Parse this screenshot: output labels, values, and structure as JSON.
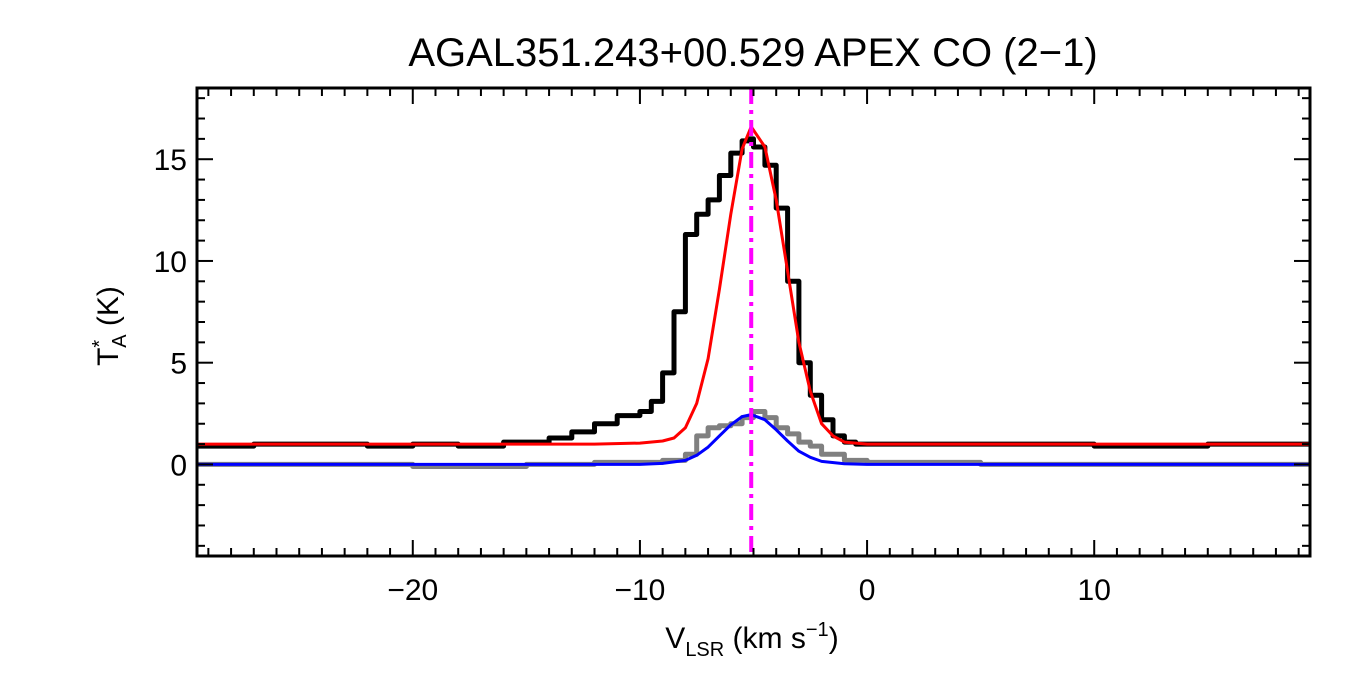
{
  "chart_data": {
    "type": "line",
    "title": "AGAL351.243+00.529  APEX CO (2−1)",
    "xlabel": {
      "main": "V",
      "sub": "LSR",
      "rest": " (km s",
      "sup": "−1",
      "close": ")"
    },
    "ylabel": {
      "main": "T",
      "sup": "*",
      "sub": "A",
      "rest": " (K)"
    },
    "xlim": [
      -29.5,
      19.5
    ],
    "ylim": [
      -4.5,
      18.5
    ],
    "xticks": [
      -20,
      -10,
      0,
      10
    ],
    "xtick_labels": [
      "−20",
      "−10",
      "0",
      "10"
    ],
    "yticks": [
      0,
      5,
      10,
      15
    ],
    "ytick_labels": [
      "0",
      "5",
      "10",
      "15"
    ],
    "grid": false,
    "legend": "none",
    "vline": {
      "x": -5.1,
      "color": "#ff00ff",
      "style": "dash-dot"
    },
    "series": [
      {
        "style": "step",
        "color": "#000000",
        "x": [
          -29.5,
          -27.0,
          -25.0,
          -22.0,
          -20.0,
          -18.0,
          -16.0,
          -14.0,
          -13.0,
          -12.0,
          -11.0,
          -10.0,
          -9.5,
          -9.0,
          -8.5,
          -8.0,
          -7.5,
          -7.0,
          -6.5,
          -6.0,
          -5.5,
          -5.2,
          -5.0,
          -4.5,
          -4.0,
          -3.5,
          -3.0,
          -2.5,
          -2.0,
          -1.5,
          -1.0,
          -0.5,
          0.0,
          5.0,
          10.0,
          15.0,
          19.5
        ],
        "y": [
          0.9,
          1.0,
          1.0,
          0.9,
          1.0,
          0.9,
          1.1,
          1.3,
          1.6,
          2.0,
          2.4,
          2.6,
          3.1,
          4.5,
          7.5,
          11.3,
          12.3,
          13.0,
          14.2,
          15.3,
          15.9,
          16.0,
          15.6,
          14.7,
          12.6,
          9.0,
          5.0,
          3.4,
          2.2,
          1.4,
          1.1,
          1.0,
          1.0,
          1.0,
          0.9,
          1.0,
          1.0
        ]
      },
      {
        "style": "step",
        "color": "#808080",
        "x": [
          -29.5,
          -25.0,
          -20.0,
          -15.0,
          -12.0,
          -10.0,
          -9.0,
          -8.0,
          -7.5,
          -7.0,
          -6.5,
          -6.0,
          -5.5,
          -5.0,
          -4.5,
          -4.0,
          -3.5,
          -3.0,
          -2.5,
          -2.0,
          -1.0,
          0.0,
          5.0,
          10.0,
          15.0,
          19.5
        ],
        "y": [
          0.0,
          0.0,
          -0.1,
          0.0,
          0.1,
          0.1,
          0.2,
          0.5,
          1.4,
          1.8,
          1.9,
          2.0,
          2.3,
          2.6,
          2.3,
          1.8,
          1.5,
          1.1,
          0.9,
          0.5,
          0.2,
          0.1,
          0.0,
          0.0,
          0.0,
          0.0
        ]
      },
      {
        "style": "line",
        "color": "#ff0000",
        "x": [
          -29.5,
          -12.0,
          -10.0,
          -9.0,
          -8.5,
          -8.0,
          -7.5,
          -7.0,
          -6.5,
          -6.0,
          -5.5,
          -5.1,
          -4.5,
          -4.0,
          -3.5,
          -3.0,
          -2.5,
          -2.0,
          -1.5,
          -1.0,
          0.0,
          19.5
        ],
        "y": [
          1.0,
          1.0,
          1.05,
          1.15,
          1.3,
          1.8,
          3.0,
          5.2,
          8.6,
          12.3,
          15.5,
          16.6,
          15.6,
          13.0,
          9.5,
          6.0,
          3.6,
          2.0,
          1.4,
          1.1,
          1.0,
          1.0
        ]
      },
      {
        "style": "line",
        "color": "#0000ff",
        "x": [
          -29.5,
          -10.0,
          -9.0,
          -8.0,
          -7.5,
          -7.0,
          -6.5,
          -6.0,
          -5.5,
          -5.1,
          -4.5,
          -4.0,
          -3.5,
          -3.0,
          -2.5,
          -2.0,
          -1.0,
          0.0,
          19.5
        ],
        "y": [
          0.0,
          0.0,
          0.05,
          0.2,
          0.45,
          0.85,
          1.4,
          1.95,
          2.35,
          2.45,
          2.2,
          1.7,
          1.15,
          0.65,
          0.35,
          0.15,
          0.03,
          0.0,
          0.0
        ]
      }
    ]
  }
}
